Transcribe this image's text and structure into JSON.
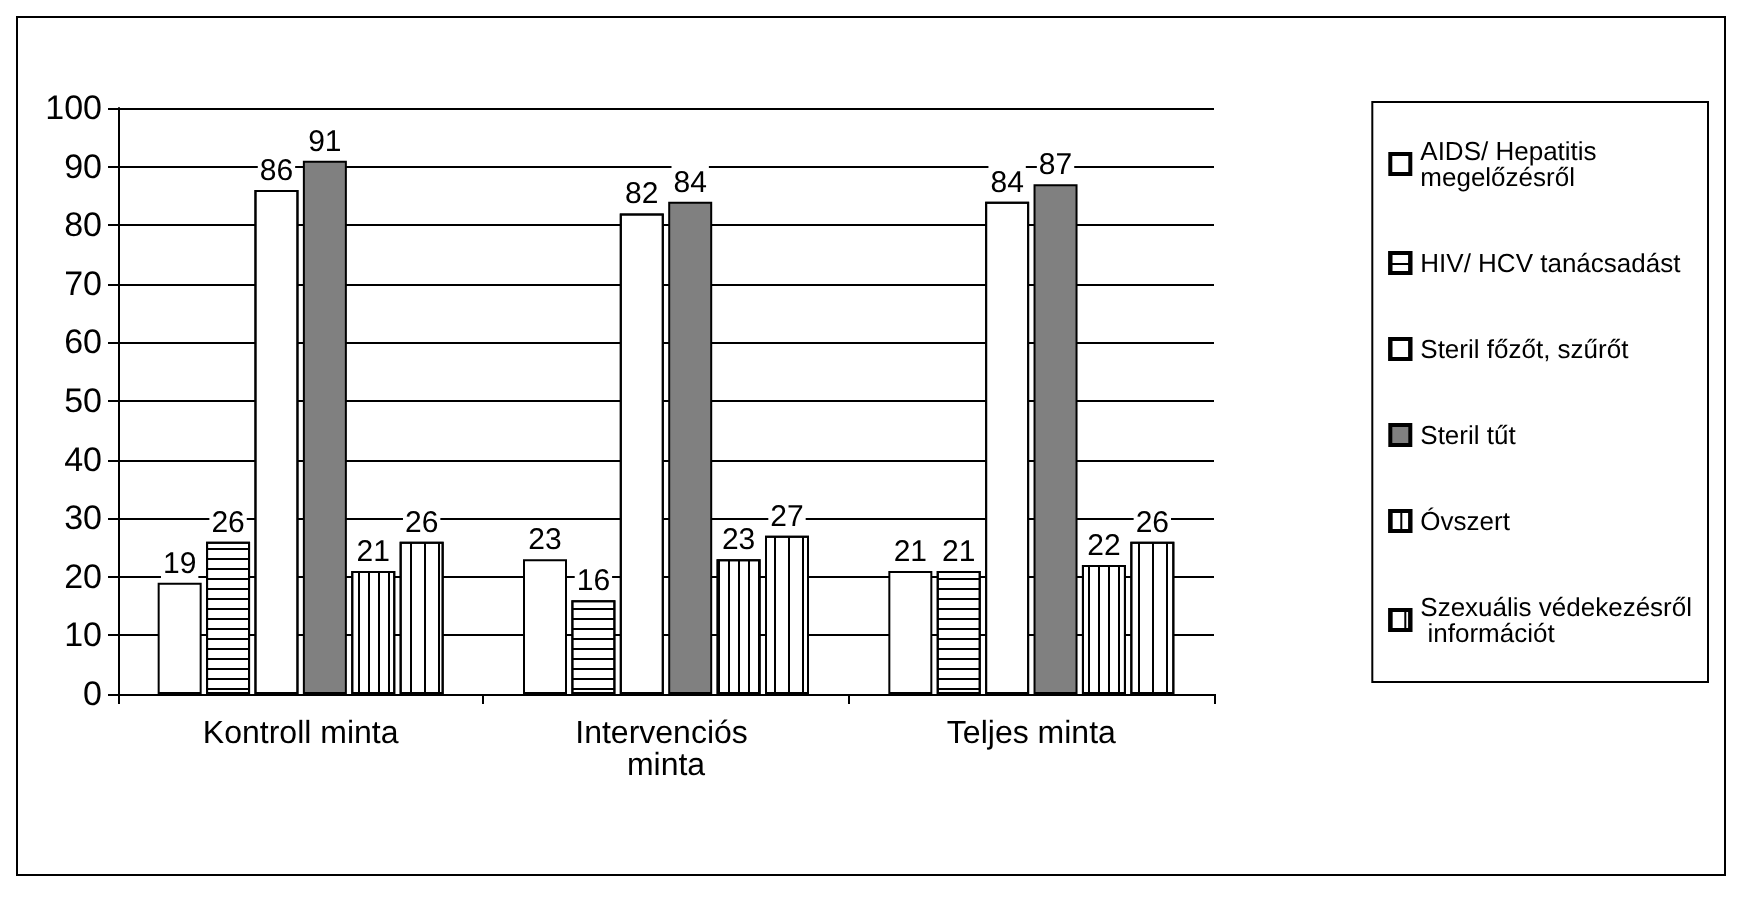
{
  "chart_data": {
    "type": "bar",
    "categories": [
      "Kontroll minta",
      "Intervenciós minta",
      "Teljes minta"
    ],
    "series": [
      {
        "name": "AIDS/ Hepatitis megelőzésről",
        "color": "#ffffff",
        "values": [
          19,
          23,
          21
        ]
      },
      {
        "name": "HIV/ HCV tanácsadást",
        "color": "#ffffff",
        "values": [
          26,
          16,
          21
        ]
      },
      {
        "name": "Steril főzőt, szűrőt",
        "color": "#ffffff",
        "values": [
          86,
          82,
          84
        ]
      },
      {
        "name": "Steril tűt",
        "color": "#808080",
        "values": [
          91,
          84,
          87
        ]
      },
      {
        "name": "Óvszert",
        "color": "#ffffff",
        "values": [
          21,
          23,
          22
        ]
      },
      {
        "name": "Szexuális védekezésről információt",
        "color": "#ffffff",
        "values": [
          26,
          27,
          26
        ]
      }
    ],
    "ylim": [
      0,
      100
    ],
    "yticks": [
      0,
      10,
      20,
      30,
      40,
      50,
      60,
      70,
      80,
      90,
      100
    ],
    "grid": "y",
    "legend": "right",
    "data_labels": true
  }
}
